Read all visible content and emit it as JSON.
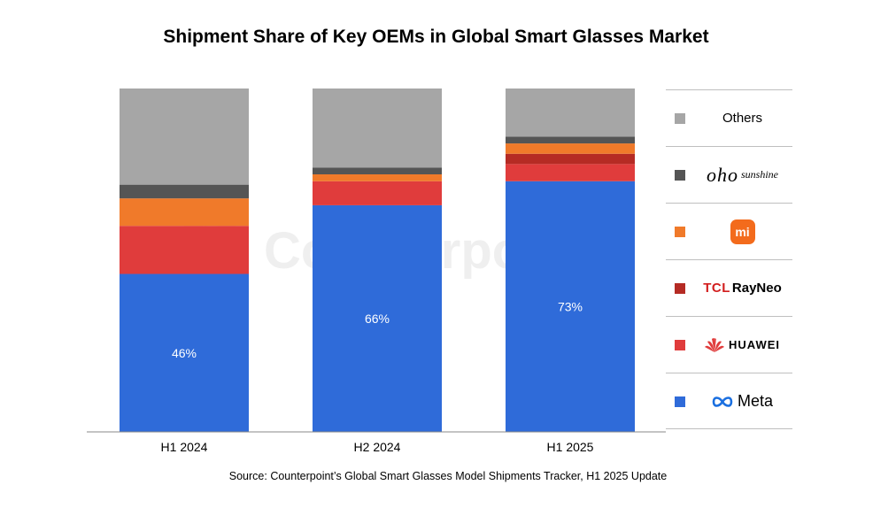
{
  "chart_data": {
    "type": "bar",
    "stacked": true,
    "normalized": true,
    "title": "Shipment Share of Key OEMs in Global Smart Glasses Market",
    "categories": [
      "H1 2024",
      "H2 2024",
      "H1 2025"
    ],
    "ylim": [
      0,
      100
    ],
    "grid": false,
    "legend_position": "right",
    "series": [
      {
        "name": "Meta",
        "color": "#2f6bd9",
        "values": [
          46,
          66,
          73
        ],
        "labels": [
          "46%",
          "66%",
          "73%"
        ]
      },
      {
        "name": "HUAWEI",
        "color": "#e03c3c",
        "values": [
          14,
          7,
          5
        ]
      },
      {
        "name": "TCL RayNeo",
        "color": "#b52b24",
        "values": [
          0,
          0,
          3
        ]
      },
      {
        "name": "Xiaomi",
        "color": "#f07a2a",
        "values": [
          8,
          2,
          3
        ]
      },
      {
        "name": "oho sunshine",
        "color": "#555555",
        "values": [
          4,
          2,
          2
        ]
      },
      {
        "name": "Others",
        "color": "#a6a6a6",
        "values": [
          28,
          23,
          14
        ]
      }
    ]
  },
  "legend": [
    {
      "key": "others",
      "color": "#a6a6a6",
      "text": "Others"
    },
    {
      "key": "oho",
      "color": "#555555",
      "text": "oho",
      "small": "sunshine"
    },
    {
      "key": "xiaomi",
      "color": "#f07a2a",
      "text": "mi"
    },
    {
      "key": "tcl",
      "color": "#b52b24",
      "text": "TCL",
      "text2": "RayNeo"
    },
    {
      "key": "huawei",
      "color": "#e03c3c",
      "text": "HUAWEI"
    },
    {
      "key": "meta",
      "color": "#2f6bd9",
      "text": "Meta"
    }
  ],
  "watermark": "Counterpoint",
  "source": "Source: Counterpoint’s Global Smart Glasses Model Shipments Tracker, H1 2025 Update"
}
